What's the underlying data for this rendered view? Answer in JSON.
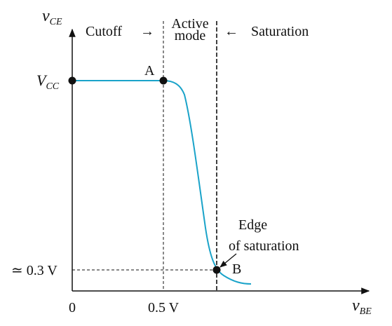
{
  "axes": {
    "y_label_main": "v",
    "y_label_sub": "CE",
    "x_label_main": "v",
    "x_label_sub": "BE",
    "origin_label": "0",
    "x_tick_label": "0.5 V",
    "y_tick_top_main": "V",
    "y_tick_top_sub": "CC",
    "y_tick_bottom_label": "≃ 0.3 V"
  },
  "regions": {
    "cutoff": "Cutoff",
    "cutoff_arrow": "→",
    "active_line1": "Active",
    "active_line2": "mode",
    "saturation_arrow": "←",
    "saturation": "Saturation"
  },
  "points": {
    "a_label": "A",
    "b_label": "B"
  },
  "annotation": {
    "line1": "Edge",
    "line2": "of saturation"
  },
  "colors": {
    "curve": "#1aa3c9",
    "ink": "#111111"
  }
}
